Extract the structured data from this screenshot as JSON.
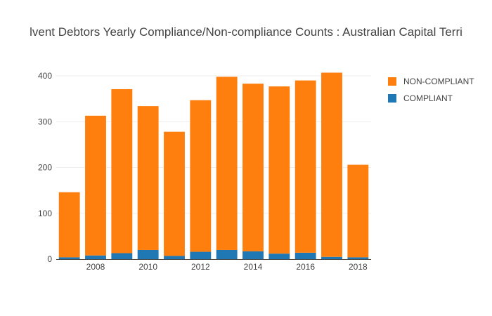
{
  "chart_data": {
    "type": "bar",
    "stacked": true,
    "title": "lvent Debtors Yearly Compliance/Non-compliance Counts : Australian Capital Terri",
    "xlabel": "",
    "ylabel": "",
    "x": [
      2007,
      2008,
      2009,
      2010,
      2011,
      2012,
      2013,
      2014,
      2015,
      2016,
      2017,
      2018
    ],
    "x_tick_labels": [
      "2008",
      "2010",
      "2012",
      "2014",
      "2016",
      "2018"
    ],
    "y_tick_labels": [
      "0",
      "100",
      "200",
      "300",
      "400"
    ],
    "ylim": [
      0,
      420
    ],
    "grid": true,
    "legend_position": "top-right",
    "series": [
      {
        "name": "COMPLIANT",
        "color": "#1f77b4",
        "values": [
          4,
          8,
          13,
          20,
          7,
          16,
          20,
          17,
          12,
          14,
          5,
          4
        ]
      },
      {
        "name": "NON-COMPLIANT",
        "color": "#ff7f0e",
        "values": [
          142,
          305,
          358,
          314,
          271,
          331,
          378,
          366,
          365,
          376,
          402,
          202
        ]
      }
    ]
  }
}
